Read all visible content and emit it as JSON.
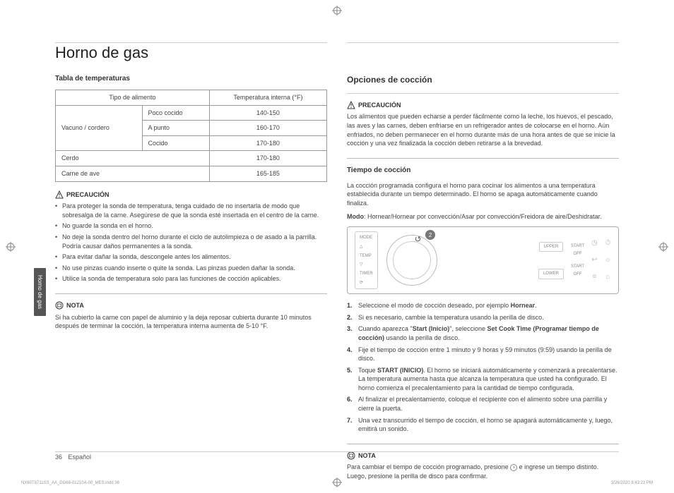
{
  "title": "Horno de gas",
  "side_tab": "Horno de gas",
  "left": {
    "table_title": "Tabla de temperaturas",
    "headers": {
      "food": "Tipo de alimento",
      "temp": "Temperatura interna (°F)"
    },
    "rows": {
      "beef_label": "Vacuno / cordero",
      "rare": "Poco cocido",
      "rare_t": "140-150",
      "med": "A punto",
      "med_t": "160-170",
      "well": "Cocido",
      "well_t": "170-180",
      "pork": "Cerdo",
      "pork_t": "170-180",
      "poultry": "Carne de ave",
      "poultry_t": "165-185"
    },
    "caution_label": "PRECAUCIÓN",
    "bullets": [
      "Para proteger la sonda de temperatura, tenga cuidado de no insertarla de modo que sobresalga de la carne. Asegúrese de que la sonda esté insertada en el centro de la carne.",
      "No guarde la sonda en el horno.",
      "No deje la sonda dentro del horno durante el ciclo de autolimpieza o de asado a la parrilla. Podría causar daños permanentes a la sonda.",
      "Para evitar dañar la sonda, descongele antes los alimentos.",
      "No use pinzas cuando inserte o quite la sonda. Las pinzas pueden dañar la sonda.",
      "Utilice la sonda de temperatura solo para las funciones de cocción aplicables."
    ],
    "note_label": "NOTA",
    "note_text": "Si ha cubierto la carne con papel de aluminio y la deja reposar cubierta durante 10 minutos después de terminar la cocción, la temperatura interna aumenta de 5-10 °F."
  },
  "right": {
    "section": "Opciones de cocción",
    "caution_label": "PRECAUCIÓN",
    "caution_text": "Los alimentos que pueden echarse a perder fácilmente como la leche, los huevos, el pescado, las aves y las carnes, deben enfriarse en un refrigerador antes de colocarse en el horno. Aún enfriados, no deben permanecer en el horno durante más de una hora antes de que se inicie la cocción y una vez finalizada la cocción deben retirarse a la brevedad.",
    "time_title": "Tiempo de cocción",
    "time_text": "La cocción programada configura el horno para cocinar los alimentos a una temperatura establecida durante un tiempo determinado. El horno se apaga automáticamente cuando finaliza.",
    "mode_text_prefix": "Modo",
    "mode_text": ": Hornear/Hornear por convección/Asar por convección/Freidora de aire/Deshidratar.",
    "panel": {
      "left_labels": [
        "MODE",
        "△",
        "TEMP",
        "▽",
        "TIMER",
        "⟳",
        "⌂",
        "⬚"
      ],
      "step_badge": "2",
      "upper": "UPPER",
      "lower": "LOWER",
      "start": "START",
      "off": "OFF"
    },
    "steps_html": [
      "Seleccione el modo de cocción deseado, por ejemplo <b>Hornear</b>.",
      "Si es necesario, cambie la temperatura usando la perilla de disco.",
      "Cuando aparezca \"<b>Start (Inicio)</b>\", seleccione <b>Set Cook Time (Programar tiempo de cocción)</b> usando la perilla de disco.",
      "Fije el tiempo de cocción entre 1 minuto y 9 horas y 59 minutos (9:59) usando la perilla de disco.",
      "Toque <b>START (INICIO)</b>. El horno se iniciará automáticamente y comenzará a precalentarse. La temperatura aumenta hasta que alcanza la temperatura que usted ha configurado. El horno comienza el precalentamiento para la cantidad de tiempo configurada.",
      "Al finalizar el precalentamiento, coloque el recipiente con el alimento sobre una parrilla y cierre la puerta.",
      "Una vez transcurrido el tiempo de cocción, el horno se apagará automáticamente y, luego, emitirá un sonido."
    ],
    "note_label": "NOTA",
    "note_text_a": "Para cambiar el tiempo de cocción programado, presione ",
    "note_text_b": " e ingrese un tiempo distinto. Luego, presione la perilla de disco para confirmar."
  },
  "footer": {
    "page": "36",
    "lang": "Español"
  },
  "meta": {
    "left": "NX60T8711SS_AA_DG68-01210A-00_MES.indd   36",
    "right": "3/26/2020   8:43:22 PM"
  }
}
